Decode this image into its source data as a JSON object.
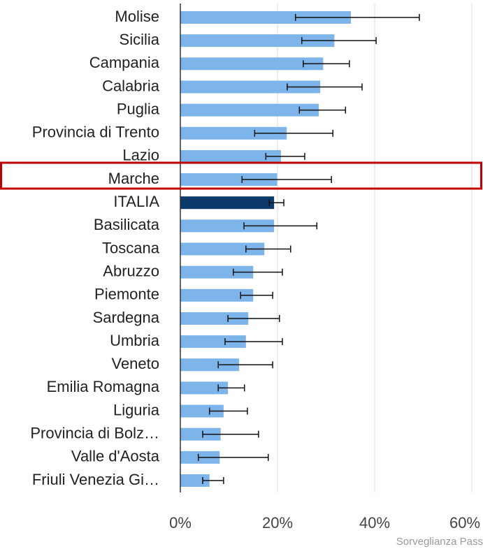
{
  "chart_data": {
    "type": "bar",
    "orientation": "horizontal",
    "categories": [
      "Molise",
      "Sicilia",
      "Campania",
      "Calabria",
      "Puglia",
      "Provincia di Trento",
      "Lazio",
      "Marche",
      "ITALIA",
      "Basilicata",
      "Toscana",
      "Abruzzo",
      "Piemonte",
      "Sardegna",
      "Umbria",
      "Veneto",
      "Emilia Romagna",
      "Liguria",
      "Provincia di Bolz…",
      "Valle d'Aosta",
      "Friuli Venezia Gi…"
    ],
    "values": [
      35.1,
      31.7,
      29.4,
      28.8,
      28.5,
      21.9,
      20.7,
      19.9,
      19.3,
      19.3,
      17.3,
      15.0,
      15.0,
      14.0,
      13.5,
      12.1,
      9.8,
      8.9,
      8.3,
      8.1,
      6.0
    ],
    "ci_low": [
      23.7,
      25.0,
      25.3,
      22.0,
      24.5,
      15.3,
      17.6,
      12.7,
      18.3,
      13.1,
      13.5,
      10.9,
      12.4,
      9.8,
      9.2,
      7.8,
      7.8,
      6.0,
      4.6,
      3.7,
      4.6
    ],
    "ci_high": [
      49.2,
      40.3,
      34.8,
      37.4,
      34.0,
      31.4,
      25.6,
      31.1,
      21.3,
      28.1,
      22.7,
      21.0,
      19.0,
      20.4,
      21.0,
      19.0,
      13.2,
      13.8,
      16.1,
      18.1,
      8.9
    ],
    "colors": [
      "#7db4ea",
      "#7db4ea",
      "#7db4ea",
      "#7db4ea",
      "#7db4ea",
      "#7db4ea",
      "#7db4ea",
      "#7db4ea",
      "#0d3a6a",
      "#7db4ea",
      "#7db4ea",
      "#7db4ea",
      "#7db4ea",
      "#7db4ea",
      "#7db4ea",
      "#7db4ea",
      "#7db4ea",
      "#7db4ea",
      "#7db4ea",
      "#7db4ea",
      "#7db4ea"
    ],
    "xlim": [
      0,
      62.3
    ],
    "xticks": [
      {
        "value": 0,
        "label": "0%"
      },
      {
        "value": 20,
        "label": "20%"
      },
      {
        "value": 40,
        "label": "40%"
      },
      {
        "value": 60,
        "label": "60%"
      }
    ],
    "grid": true,
    "source": "Sorveglianza Pass"
  }
}
